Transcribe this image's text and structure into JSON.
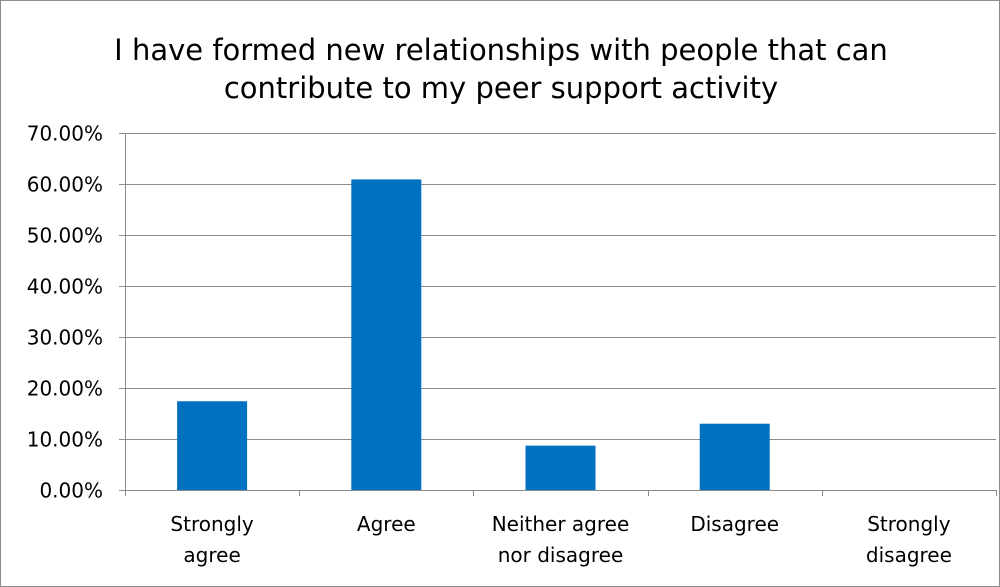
{
  "chart_data": {
    "type": "bar",
    "title": "I have formed new relationships with people that can contribute to my peer support activity",
    "title_lines": [
      "I have formed new relationships with people that can",
      "contribute to my peer support activity"
    ],
    "categories": [
      [
        "Strongly",
        "agree"
      ],
      [
        "Agree"
      ],
      [
        "Neither agree",
        "nor disagree"
      ],
      [
        "Disagree"
      ],
      [
        "Strongly",
        "disagree"
      ]
    ],
    "values": [
      0.174,
      0.609,
      0.087,
      0.13,
      0.0
    ],
    "ylim": [
      0,
      0.7
    ],
    "yticks": [
      0,
      0.1,
      0.2,
      0.3,
      0.4,
      0.5,
      0.6,
      0.7
    ],
    "ytick_labels": [
      "0.00%",
      "10.00%",
      "20.00%",
      "30.00%",
      "40.00%",
      "50.00%",
      "60.00%",
      "70.00%"
    ],
    "xlabel": "",
    "ylabel": "",
    "grid": "horizontal",
    "bar_color": "#0070c0",
    "grid_color": "#8c8c8c"
  }
}
